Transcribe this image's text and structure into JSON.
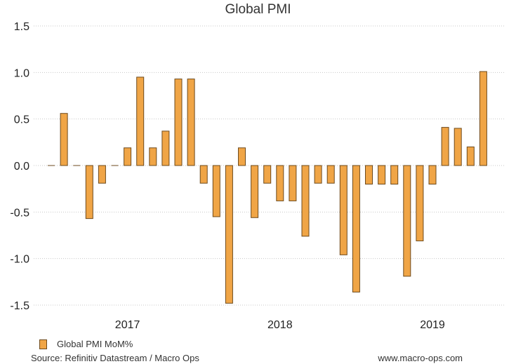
{
  "chart_data": {
    "type": "bar",
    "title": "Global PMI",
    "xlabel": "",
    "ylabel": "",
    "ylim": [
      -1.5,
      1.5
    ],
    "yticks": [
      1.5,
      1.0,
      0.5,
      0.0,
      -0.5,
      -1.0,
      -1.5
    ],
    "ytick_labels": [
      "1.5",
      "1.0",
      "0.5",
      "0.0",
      "-0.5",
      "-1.0",
      "-1.5"
    ],
    "year_labels": [
      {
        "label": "2017",
        "at_index": 6
      },
      {
        "label": "2018",
        "at_index": 18
      },
      {
        "label": "2019",
        "at_index": 30
      }
    ],
    "series": [
      {
        "name": "Global PMI MoM%",
        "color": "#f0a546",
        "edge_color": "#6e4a1c",
        "values": [
          0.0,
          0.56,
          0.0,
          -0.57,
          -0.19,
          0.0,
          0.19,
          0.95,
          0.19,
          0.37,
          0.93,
          0.93,
          -0.19,
          -0.55,
          -1.48,
          0.19,
          -0.56,
          -0.19,
          -0.38,
          -0.38,
          -0.76,
          -0.19,
          -0.19,
          -0.96,
          -1.36,
          -0.2,
          -0.2,
          -0.2,
          -1.19,
          -0.81,
          -0.2,
          0.41,
          0.4,
          0.2,
          1.01
        ]
      }
    ],
    "grid": true,
    "legend": "bottom-left"
  },
  "footer": {
    "source": "Source: Refinitiv Datastream / Macro Ops",
    "website": "www.macro-ops.com"
  }
}
